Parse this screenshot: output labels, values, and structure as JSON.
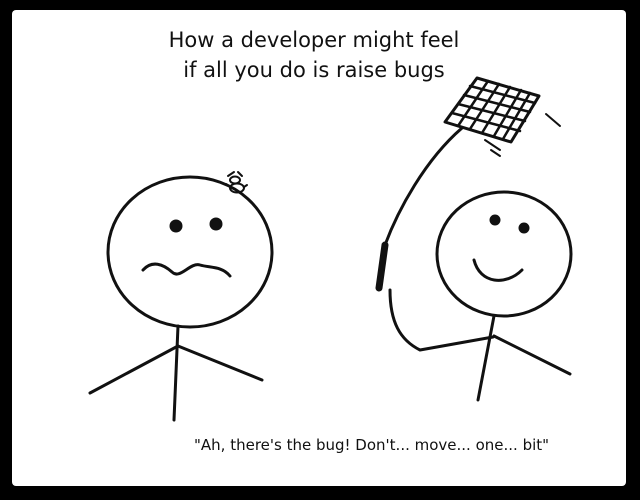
{
  "comic": {
    "title_line1": "How a developer might feel",
    "title_line2": "if all you do is raise bugs",
    "quote": "\"Ah, there's the bug! Don't... move... one... bit\""
  },
  "colors": {
    "frame": "#000000",
    "panel": "#ffffff",
    "ink": "#111111"
  }
}
